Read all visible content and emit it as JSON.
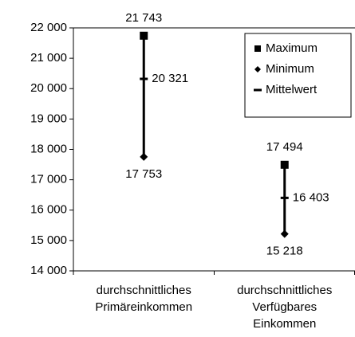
{
  "chart_data": {
    "type": "high-low",
    "categories": [
      [
        "durchschnittliches",
        "Primäreinkommen"
      ],
      [
        "durchschnittliches",
        "Verfügbares",
        "Einkommen"
      ]
    ],
    "series": [
      {
        "name": "Maximum",
        "color": "#000000",
        "values": [
          21743,
          17494
        ],
        "value_labels": [
          "21 743",
          "17 494"
        ]
      },
      {
        "name": "Minimum",
        "color": "#000000",
        "values": [
          17753,
          15218
        ],
        "value_labels": [
          "17 753",
          "15 218"
        ]
      },
      {
        "name": "Mittelwert",
        "color": "#000000",
        "values": [
          20321,
          16403
        ],
        "value_labels": [
          "20 321",
          "16 403"
        ]
      }
    ],
    "ylim": [
      14000,
      22000
    ],
    "yticks": [
      {
        "value": 14000,
        "label": "14 000"
      },
      {
        "value": 15000,
        "label": "15 000"
      },
      {
        "value": 16000,
        "label": "16 000"
      },
      {
        "value": 17000,
        "label": "17 000"
      },
      {
        "value": 18000,
        "label": "18 000"
      },
      {
        "value": 19000,
        "label": "19 000"
      },
      {
        "value": 20000,
        "label": "20 000"
      },
      {
        "value": 21000,
        "label": "21 000"
      },
      {
        "value": 22000,
        "label": "22 000"
      }
    ],
    "legend": "top-right"
  }
}
